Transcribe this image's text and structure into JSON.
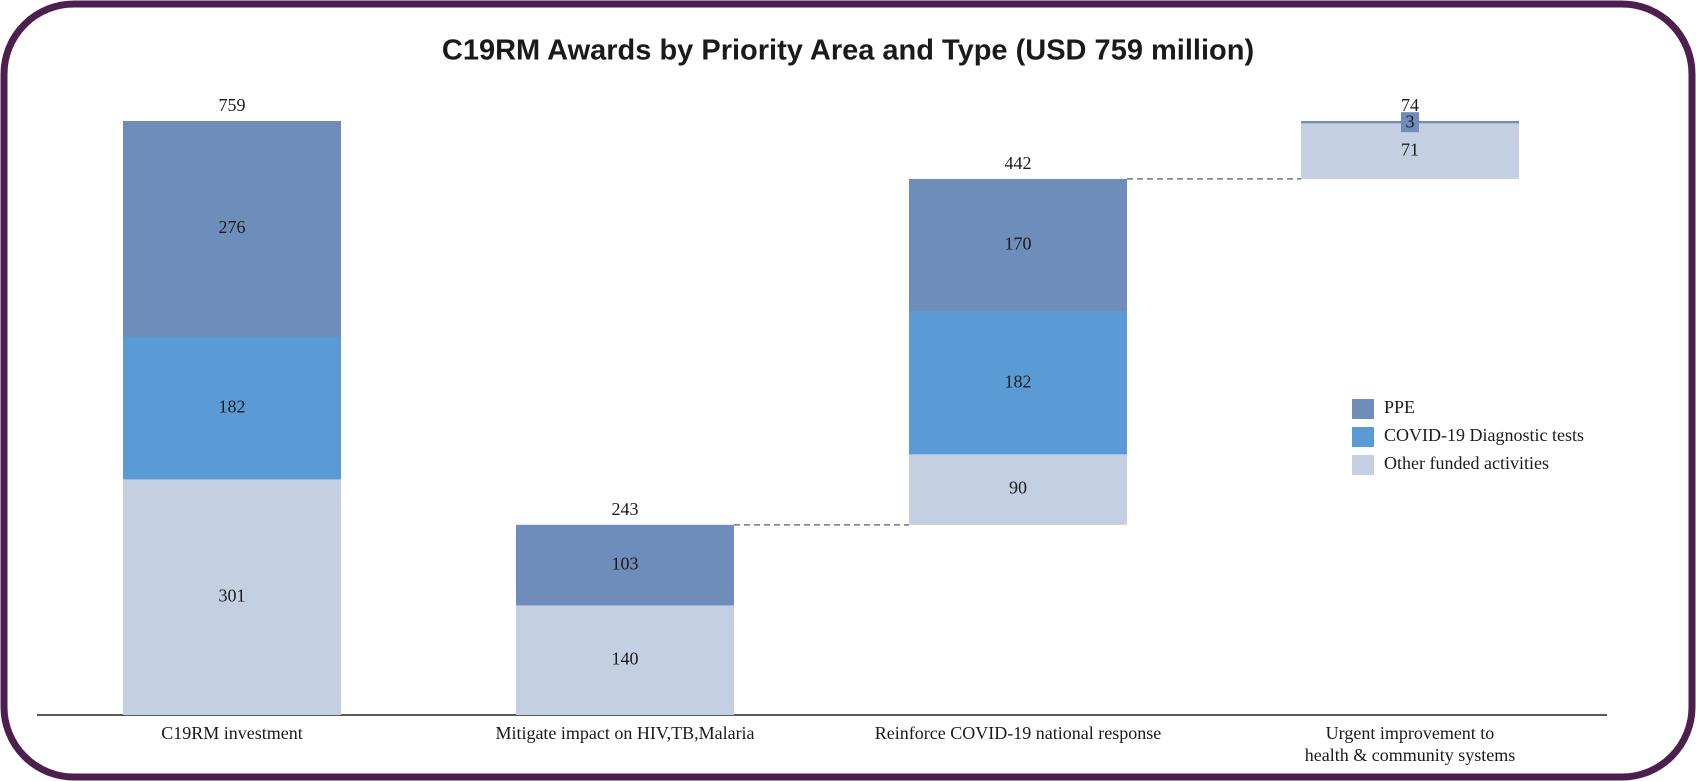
{
  "chart_data": {
    "type": "waterfall_stacked",
    "title": "C19RM Awards by Priority Area and Type (USD 759 million)",
    "categories": [
      "C19RM investment",
      "Mitigate impact on HIV,TB,Malaria",
      "Reinforce COVID-19 national response",
      "Urgent improvement to\nhealth & community systems"
    ],
    "totals": [
      759,
      243,
      442,
      74
    ],
    "series": [
      {
        "name": "Other funded activities",
        "color": "#c5cfe2",
        "label_color": "#1a1a1a",
        "values": [
          301,
          140,
          90,
          71
        ]
      },
      {
        "name": "COVID-19 Diagnostic tests",
        "color": "#5b9bd5",
        "label_color": "#ffffff",
        "values": [
          182,
          null,
          182,
          null
        ]
      },
      {
        "name": "PPE",
        "color": "#6f8dba",
        "label_color": "#ffffff",
        "values": [
          276,
          103,
          170,
          3
        ]
      }
    ],
    "ylim": [
      0,
      759
    ],
    "legend": "right"
  }
}
